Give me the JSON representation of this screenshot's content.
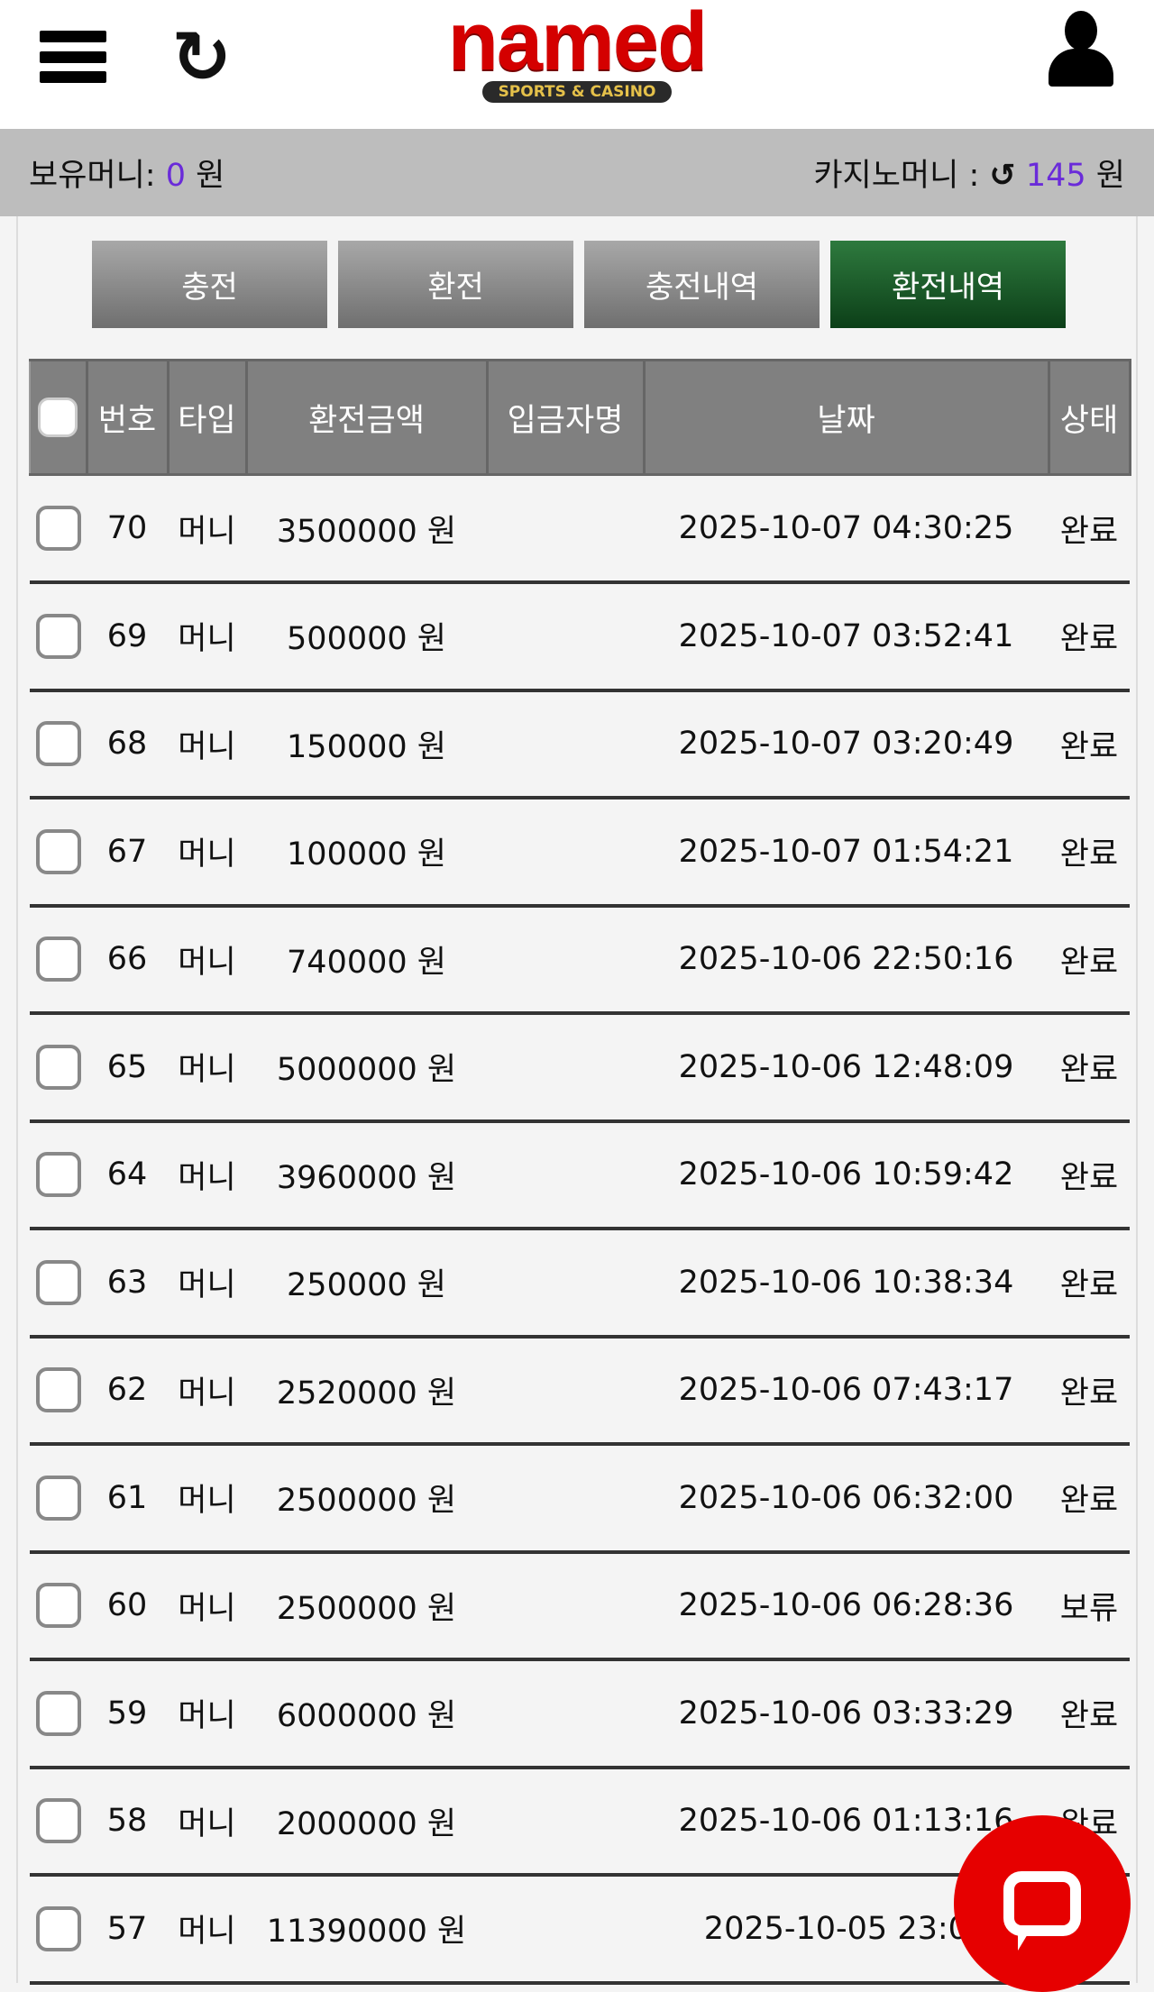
{
  "header": {
    "logo": "named",
    "logo_sub": "SPORTS & CASINO",
    "refresh_icon": "↻"
  },
  "balance": {
    "money_label": "보유머니:",
    "money_value": "0",
    "money_unit": "원",
    "casino_label": "카지노머니 :",
    "casino_value": "145",
    "casino_unit": "원",
    "casino_refresh_icon": "↺",
    "accent": "#6a2bd9"
  },
  "tabs": [
    {
      "label": "충전"
    },
    {
      "label": "환전"
    },
    {
      "label": "충전내역"
    },
    {
      "label": "환전내역"
    }
  ],
  "table": {
    "headers": [
      "번호",
      "타입",
      "환전금액",
      "입금자명",
      "날짜",
      "상태"
    ],
    "rows": [
      {
        "no": "70",
        "type": "머니",
        "amount": "3500000 원",
        "date": "2025-10-07 04:30:25",
        "status": "완료"
      },
      {
        "no": "69",
        "type": "머니",
        "amount": "500000 원",
        "date": "2025-10-07 03:52:41",
        "status": "완료"
      },
      {
        "no": "68",
        "type": "머니",
        "amount": "150000 원",
        "date": "2025-10-07 03:20:49",
        "status": "완료"
      },
      {
        "no": "67",
        "type": "머니",
        "amount": "100000 원",
        "date": "2025-10-07 01:54:21",
        "status": "완료"
      },
      {
        "no": "66",
        "type": "머니",
        "amount": "740000 원",
        "date": "2025-10-06 22:50:16",
        "status": "완료"
      },
      {
        "no": "65",
        "type": "머니",
        "amount": "5000000 원",
        "date": "2025-10-06 12:48:09",
        "status": "완료"
      },
      {
        "no": "64",
        "type": "머니",
        "amount": "3960000 원",
        "date": "2025-10-06 10:59:42",
        "status": "완료"
      },
      {
        "no": "63",
        "type": "머니",
        "amount": "250000 원",
        "date": "2025-10-06 10:38:34",
        "status": "완료"
      },
      {
        "no": "62",
        "type": "머니",
        "amount": "2520000 원",
        "date": "2025-10-06 07:43:17",
        "status": "완료"
      },
      {
        "no": "61",
        "type": "머니",
        "amount": "2500000 원",
        "date": "2025-10-06 06:32:00",
        "status": "완료"
      },
      {
        "no": "60",
        "type": "머니",
        "amount": "2500000 원",
        "date": "2025-10-06 06:28:36",
        "status": "보류"
      },
      {
        "no": "59",
        "type": "머니",
        "amount": "6000000 원",
        "date": "2025-10-06 03:33:29",
        "status": "완료"
      },
      {
        "no": "58",
        "type": "머니",
        "amount": "2000000 원",
        "date": "2025-10-06 01:13:16",
        "status": "완료"
      },
      {
        "no": "57",
        "type": "머니",
        "amount": "11390000 원",
        "date": "2025-10-05 23:01",
        "status": ""
      }
    ]
  }
}
